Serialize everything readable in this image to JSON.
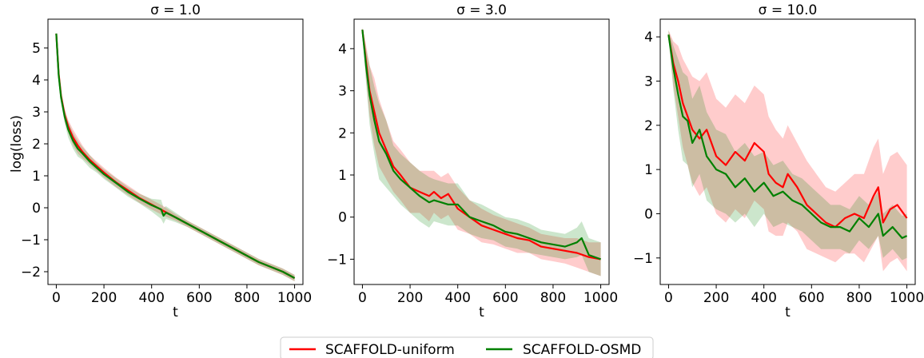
{
  "legend": {
    "placement": "bottom-center",
    "entries": [
      {
        "label": "SCAFFOLD-uniform",
        "color": "#ff0000"
      },
      {
        "label": "SCAFFOLD-OSMD",
        "color": "#008000"
      }
    ]
  },
  "shared_ylabel": "log(loss)",
  "chart_data": [
    {
      "type": "line",
      "title": "σ = 1.0",
      "xlabel": "t",
      "ylabel": "log(loss)",
      "xlim": [
        -35,
        1035
      ],
      "ylim": [
        -2.4,
        5.9
      ],
      "xticks": [
        0,
        200,
        400,
        600,
        800,
        1000
      ],
      "yticks": [
        -2,
        -1,
        0,
        1,
        2,
        3,
        4,
        5
      ],
      "grid": false,
      "series": [
        {
          "name": "SCAFFOLD-uniform",
          "color": "#ff0000",
          "x": [
            0,
            10,
            20,
            35,
            50,
            70,
            90,
            110,
            140,
            170,
            200,
            250,
            300,
            350,
            400,
            450,
            500,
            550,
            600,
            650,
            700,
            750,
            800,
            850,
            900,
            950,
            1000
          ],
          "y": [
            5.45,
            4.2,
            3.5,
            2.9,
            2.55,
            2.2,
            1.95,
            1.75,
            1.5,
            1.3,
            1.1,
            0.8,
            0.55,
            0.3,
            0.1,
            -0.1,
            -0.3,
            -0.5,
            -0.7,
            -0.9,
            -1.1,
            -1.3,
            -1.5,
            -1.7,
            -1.85,
            -2.0,
            -2.2
          ],
          "band": [
            0.05,
            0.1,
            0.15,
            0.2,
            0.2,
            0.25,
            0.25,
            0.2,
            0.15,
            0.15,
            0.15,
            0.15,
            0.15,
            0.15,
            0.15,
            0.15,
            0.1,
            0.1,
            0.1,
            0.1,
            0.1,
            0.1,
            0.1,
            0.1,
            0.1,
            0.1,
            0.1
          ]
        },
        {
          "name": "SCAFFOLD-OSMD",
          "color": "#008000",
          "x": [
            0,
            10,
            20,
            35,
            50,
            70,
            90,
            110,
            140,
            170,
            200,
            250,
            300,
            350,
            400,
            440,
            450,
            460,
            500,
            550,
            600,
            650,
            700,
            750,
            800,
            850,
            900,
            950,
            1000
          ],
          "y": [
            5.45,
            4.15,
            3.45,
            2.85,
            2.45,
            2.1,
            1.85,
            1.7,
            1.45,
            1.25,
            1.05,
            0.78,
            0.5,
            0.28,
            0.08,
            -0.05,
            -0.25,
            -0.15,
            -0.3,
            -0.5,
            -0.7,
            -0.9,
            -1.1,
            -1.3,
            -1.5,
            -1.7,
            -1.85,
            -2.0,
            -2.2
          ],
          "band": [
            0.05,
            0.1,
            0.15,
            0.2,
            0.25,
            0.25,
            0.25,
            0.2,
            0.2,
            0.15,
            0.15,
            0.15,
            0.15,
            0.15,
            0.2,
            0.3,
            0.25,
            0.2,
            0.15,
            0.1,
            0.1,
            0.1,
            0.1,
            0.1,
            0.1,
            0.1,
            0.1,
            0.1,
            0.1
          ]
        }
      ]
    },
    {
      "type": "line",
      "title": "σ = 3.0",
      "xlabel": "t",
      "ylabel": "",
      "xlim": [
        -35,
        1035
      ],
      "ylim": [
        -1.6,
        4.7
      ],
      "xticks": [
        0,
        200,
        400,
        600,
        800,
        1000
      ],
      "yticks": [
        -1,
        0,
        1,
        2,
        3,
        4
      ],
      "grid": false,
      "series": [
        {
          "name": "SCAFFOLD-uniform",
          "color": "#ff0000",
          "x": [
            0,
            15,
            30,
            50,
            70,
            100,
            130,
            160,
            200,
            240,
            280,
            300,
            330,
            360,
            400,
            450,
            500,
            550,
            600,
            650,
            700,
            750,
            800,
            850,
            900,
            950,
            1000
          ],
          "y": [
            4.45,
            3.7,
            3.0,
            2.5,
            2.0,
            1.6,
            1.2,
            1.0,
            0.7,
            0.6,
            0.5,
            0.6,
            0.45,
            0.55,
            0.2,
            0.0,
            -0.2,
            -0.3,
            -0.4,
            -0.5,
            -0.55,
            -0.7,
            -0.75,
            -0.8,
            -0.85,
            -0.95,
            -1.0
          ],
          "band": [
            0.05,
            0.4,
            0.6,
            0.8,
            0.8,
            0.7,
            0.6,
            0.6,
            0.6,
            0.5,
            0.6,
            0.5,
            0.5,
            0.5,
            0.5,
            0.4,
            0.4,
            0.35,
            0.35,
            0.35,
            0.3,
            0.3,
            0.3,
            0.3,
            0.35,
            0.35,
            0.4
          ]
        },
        {
          "name": "SCAFFOLD-OSMD",
          "color": "#008000",
          "x": [
            0,
            15,
            30,
            50,
            70,
            100,
            130,
            160,
            200,
            240,
            280,
            300,
            330,
            360,
            400,
            450,
            500,
            550,
            600,
            650,
            700,
            750,
            800,
            850,
            900,
            920,
            950,
            1000
          ],
          "y": [
            4.45,
            3.6,
            2.9,
            2.3,
            1.8,
            1.5,
            1.1,
            0.9,
            0.7,
            0.5,
            0.35,
            0.4,
            0.35,
            0.3,
            0.3,
            0.0,
            -0.1,
            -0.2,
            -0.35,
            -0.4,
            -0.5,
            -0.6,
            -0.65,
            -0.7,
            -0.6,
            -0.5,
            -0.9,
            -1.0
          ],
          "band": [
            0.05,
            0.4,
            0.7,
            0.8,
            0.9,
            0.8,
            0.6,
            0.6,
            0.6,
            0.6,
            0.6,
            0.5,
            0.5,
            0.5,
            0.5,
            0.4,
            0.4,
            0.35,
            0.35,
            0.35,
            0.35,
            0.3,
            0.3,
            0.3,
            0.35,
            0.4,
            0.4,
            0.4
          ]
        }
      ]
    },
    {
      "type": "line",
      "title": "σ = 10.0",
      "xlabel": "t",
      "ylabel": "",
      "xlim": [
        -35,
        1035
      ],
      "ylim": [
        -1.6,
        4.4
      ],
      "xticks": [
        0,
        200,
        400,
        600,
        800,
        1000
      ],
      "yticks": [
        -1,
        0,
        1,
        2,
        3,
        4
      ],
      "grid": false,
      "series": [
        {
          "name": "SCAFFOLD-uniform",
          "color": "#ff0000",
          "x": [
            0,
            20,
            40,
            60,
            80,
            100,
            130,
            160,
            200,
            240,
            280,
            320,
            360,
            400,
            420,
            450,
            480,
            500,
            540,
            580,
            620,
            660,
            700,
            740,
            780,
            820,
            860,
            880,
            900,
            930,
            960,
            1000
          ],
          "y": [
            4.05,
            3.4,
            3.0,
            2.5,
            2.2,
            1.9,
            1.7,
            1.9,
            1.3,
            1.1,
            1.4,
            1.2,
            1.6,
            1.4,
            0.9,
            0.7,
            0.6,
            0.9,
            0.6,
            0.2,
            0.0,
            -0.2,
            -0.3,
            -0.1,
            0.0,
            -0.1,
            0.4,
            0.6,
            -0.2,
            0.1,
            0.2,
            -0.1
          ],
          "band": [
            0.1,
            0.5,
            0.8,
            1.0,
            1.1,
            1.2,
            1.3,
            1.3,
            1.3,
            1.3,
            1.3,
            1.3,
            1.3,
            1.3,
            1.3,
            1.2,
            1.1,
            1.1,
            1.0,
            1.0,
            0.9,
            0.8,
            0.8,
            0.8,
            0.9,
            1.0,
            1.1,
            1.1,
            1.1,
            1.2,
            1.2,
            1.2
          ]
        },
        {
          "name": "SCAFFOLD-OSMD",
          "color": "#008000",
          "x": [
            0,
            20,
            40,
            60,
            80,
            100,
            130,
            160,
            200,
            240,
            280,
            320,
            360,
            400,
            440,
            480,
            520,
            560,
            600,
            640,
            680,
            720,
            760,
            800,
            840,
            880,
            900,
            940,
            980,
            1000
          ],
          "y": [
            4.05,
            3.3,
            2.7,
            2.2,
            2.1,
            1.6,
            1.9,
            1.3,
            1.0,
            0.9,
            0.6,
            0.8,
            0.5,
            0.7,
            0.4,
            0.5,
            0.3,
            0.2,
            0.0,
            -0.2,
            -0.3,
            -0.3,
            -0.4,
            -0.1,
            -0.3,
            0.0,
            -0.5,
            -0.3,
            -0.55,
            -0.5
          ],
          "band": [
            0.1,
            0.5,
            0.8,
            1.0,
            1.0,
            1.0,
            1.0,
            1.0,
            0.9,
            0.9,
            0.8,
            0.8,
            0.8,
            0.7,
            0.7,
            0.7,
            0.6,
            0.6,
            0.6,
            0.6,
            0.5,
            0.5,
            0.5,
            0.5,
            0.5,
            0.5,
            0.5,
            0.5,
            0.5,
            0.5
          ]
        }
      ]
    }
  ]
}
